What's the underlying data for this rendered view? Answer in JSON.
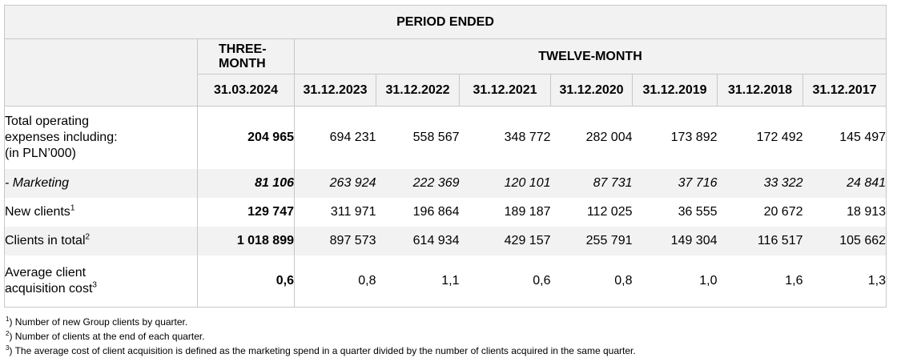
{
  "header": {
    "period_ended": "PERIOD ENDED",
    "three_month": "THREE-MONTH",
    "twelve_month": "TWELVE-MONTH",
    "dates": [
      "31.03.2024",
      "31.12.2023",
      "31.12.2022",
      "31.12.2021",
      "31.12.2020",
      "31.12.2019",
      "31.12.2018",
      "31.12.2017"
    ]
  },
  "rows": [
    {
      "label_lines": [
        "Total operating",
        "expenses including:",
        "(in PLN’000)"
      ],
      "sup": "",
      "values": [
        "204 965",
        "694 231",
        "558 567",
        "348 772",
        "282 004",
        "173 892",
        "172 492",
        "145 497"
      ]
    },
    {
      "label": "- Marketing",
      "values": [
        "81 106",
        "263 924",
        "222 369",
        "120 101",
        "87 731",
        "37 716",
        "33 322",
        "24 841"
      ]
    },
    {
      "label": "New clients",
      "sup": "1",
      "values": [
        "129 747",
        "311 971",
        "196 864",
        "189 187",
        "112 025",
        "36 555",
        "20 672",
        "18 913"
      ]
    },
    {
      "label": "Clients in total",
      "sup": "2",
      "values": [
        "1 018 899",
        "897 573",
        "614 934",
        "429 157",
        "255 791",
        "149 304",
        "116 517",
        "105 662"
      ]
    },
    {
      "label_lines": [
        "Average client",
        "acquisition cost"
      ],
      "sup": "3",
      "values": [
        "0,6",
        "0,8",
        "1,1",
        "0,6",
        "0,8",
        "1,0",
        "1,6",
        "1,3"
      ]
    }
  ],
  "footnotes": [
    {
      "mark": "1",
      "text": ") Number of new Group clients by quarter."
    },
    {
      "mark": "2",
      "text": ") Number of clients at the end of each quarter."
    },
    {
      "mark": "3",
      "text": ") The average cost of client acquisition is defined as the marketing spend in a quarter divided by the number of clients acquired in the same quarter."
    }
  ]
}
